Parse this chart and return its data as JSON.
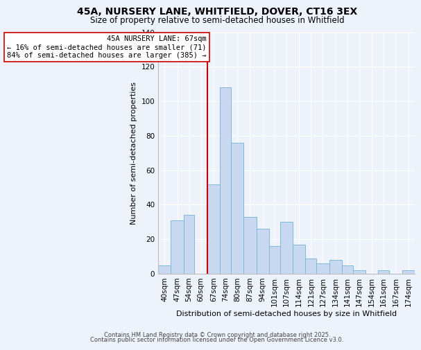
{
  "title1": "45A, NURSERY LANE, WHITFIELD, DOVER, CT16 3EX",
  "title2": "Size of property relative to semi-detached houses in Whitfield",
  "xlabel": "Distribution of semi-detached houses by size in Whitfield",
  "ylabel": "Number of semi-detached properties",
  "bin_labels": [
    "40sqm",
    "47sqm",
    "54sqm",
    "60sqm",
    "67sqm",
    "74sqm",
    "80sqm",
    "87sqm",
    "94sqm",
    "101sqm",
    "107sqm",
    "114sqm",
    "121sqm",
    "127sqm",
    "134sqm",
    "141sqm",
    "147sqm",
    "154sqm",
    "161sqm",
    "167sqm",
    "174sqm"
  ],
  "bin_edges": [
    40,
    47,
    54,
    60,
    67,
    74,
    80,
    87,
    94,
    101,
    107,
    114,
    121,
    127,
    134,
    141,
    147,
    154,
    161,
    167,
    174,
    181
  ],
  "values": [
    5,
    31,
    34,
    0,
    52,
    108,
    76,
    33,
    26,
    16,
    30,
    17,
    9,
    6,
    8,
    5,
    2,
    0,
    2,
    0,
    2
  ],
  "bar_color": "#c8d8f0",
  "bar_edge_color": "#7fb8d8",
  "property_size": 67,
  "vline_color": "#cc0000",
  "annotation_text": "45A NURSERY LANE: 67sqm\n← 16% of semi-detached houses are smaller (71)\n84% of semi-detached houses are larger (385) →",
  "annotation_box_facecolor": "#ffffff",
  "annotation_box_edgecolor": "#cc0000",
  "ylim": [
    0,
    140
  ],
  "yticks": [
    0,
    20,
    40,
    60,
    80,
    100,
    120,
    140
  ],
  "background_color": "#eef2fb",
  "grid_color": "#ffffff",
  "footer1": "Contains HM Land Registry data © Crown copyright and database right 2025.",
  "footer2": "Contains public sector information licensed under the Open Government Licence v3.0.",
  "title1_fontsize": 10,
  "title2_fontsize": 8.5,
  "axis_label_fontsize": 8,
  "tick_fontsize": 7.5,
  "annotation_fontsize": 7.5,
  "footer_fontsize": 6.0
}
